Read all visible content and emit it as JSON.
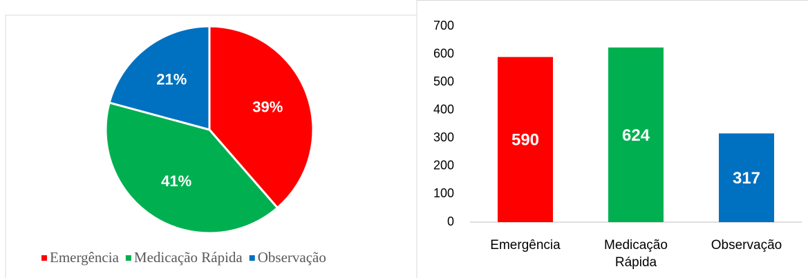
{
  "chart_data": [
    {
      "type": "pie",
      "categories": [
        "Emergência",
        "Medicação Rápida",
        "Observação"
      ],
      "values": [
        39,
        41,
        21
      ],
      "value_labels": [
        "39%",
        "41%",
        "21%"
      ],
      "colors": [
        "#ff0000",
        "#00b050",
        "#0070c0"
      ],
      "legend": "bottom"
    },
    {
      "type": "bar",
      "categories": [
        "Emergência",
        "Medicação Rápida",
        "Observação"
      ],
      "values": [
        590,
        624,
        317
      ],
      "colors": [
        "#ff0000",
        "#00b050",
        "#0070c0"
      ],
      "ylim": [
        0,
        700
      ],
      "yticks": [
        0,
        100,
        200,
        300,
        400,
        500,
        600,
        700
      ],
      "grid": false
    }
  ]
}
